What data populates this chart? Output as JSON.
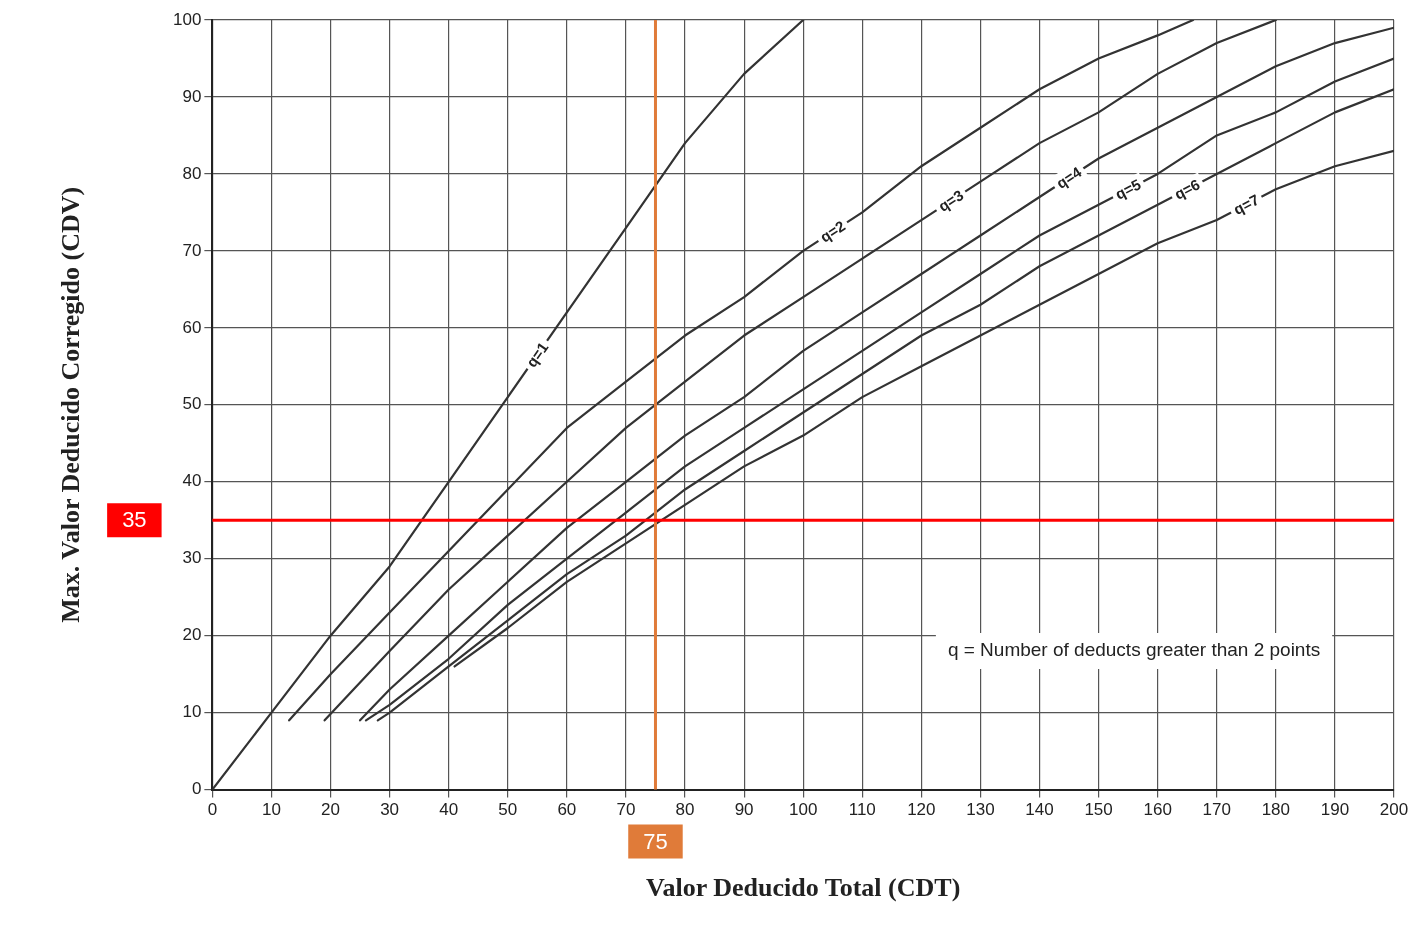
{
  "chart_data": {
    "type": "line",
    "xlabel": "Valor Deducido Total (CDT)",
    "ylabel": "Max. Valor Deducido Corregido (CDV)",
    "xlim": [
      0,
      200
    ],
    "ylim": [
      0,
      100
    ],
    "xticks": [
      0,
      10,
      20,
      30,
      40,
      50,
      60,
      70,
      80,
      90,
      100,
      110,
      120,
      130,
      140,
      150,
      160,
      170,
      180,
      190,
      200
    ],
    "yticks": [
      0,
      10,
      20,
      30,
      40,
      50,
      60,
      70,
      80,
      90,
      100
    ],
    "grid": true,
    "legend": false,
    "marker": "none",
    "line_style": "solid",
    "series": [
      {
        "name": "q=1",
        "color": "#333333",
        "x": [
          0,
          10,
          20,
          30,
          40,
          50,
          60,
          70,
          80,
          90,
          100
        ],
        "values": [
          0,
          10,
          20,
          29,
          40,
          51,
          62,
          73,
          84,
          93,
          100
        ]
      },
      {
        "name": "q=2",
        "color": "#333333",
        "x": [
          13,
          20,
          30,
          40,
          50,
          60,
          70,
          80,
          90,
          100,
          110,
          120,
          130,
          140,
          150,
          160,
          166
        ],
        "values": [
          9,
          15,
          23,
          31,
          39,
          47,
          53,
          59,
          64,
          70,
          75,
          81,
          86,
          91,
          95,
          98,
          100
        ]
      },
      {
        "name": "q=3",
        "color": "#333333",
        "x": [
          19,
          30,
          40,
          50,
          60,
          70,
          80,
          90,
          100,
          110,
          120,
          130,
          140,
          150,
          160,
          170,
          180
        ],
        "values": [
          9,
          18,
          26,
          33,
          40,
          47,
          53,
          59,
          64,
          69,
          74,
          79,
          84,
          88,
          93,
          97,
          100
        ]
      },
      {
        "name": "q=4",
        "color": "#333333",
        "x": [
          25,
          30,
          40,
          50,
          60,
          70,
          80,
          90,
          100,
          110,
          120,
          130,
          140,
          150,
          160,
          170,
          180,
          190,
          200
        ],
        "values": [
          9,
          13,
          20,
          27,
          34,
          40,
          46,
          51,
          57,
          62,
          67,
          72,
          77,
          82,
          86,
          90,
          94,
          97,
          99
        ]
      },
      {
        "name": "q=5",
        "color": "#333333",
        "x": [
          26,
          30,
          40,
          50,
          60,
          70,
          80,
          90,
          100,
          110,
          120,
          130,
          140,
          150,
          160,
          170,
          180,
          190,
          200
        ],
        "values": [
          9,
          11,
          17,
          24,
          30,
          36,
          42,
          47,
          52,
          57,
          62,
          67,
          72,
          76,
          80,
          85,
          88,
          92,
          95
        ]
      },
      {
        "name": "q=6",
        "color": "#333333",
        "x": [
          28,
          30,
          40,
          50,
          60,
          70,
          80,
          90,
          100,
          110,
          120,
          130,
          140,
          150,
          160,
          170,
          180,
          190,
          200
        ],
        "values": [
          9,
          10,
          16,
          22,
          28,
          33,
          39,
          44,
          49,
          54,
          59,
          63,
          68,
          72,
          76,
          80,
          84,
          88,
          91
        ]
      },
      {
        "name": "q=7",
        "color": "#333333",
        "x": [
          41,
          50,
          60,
          70,
          80,
          90,
          100,
          110,
          120,
          130,
          140,
          150,
          160,
          170,
          180,
          190,
          200
        ],
        "values": [
          16,
          21,
          27,
          32,
          37,
          42,
          46,
          51,
          55,
          59,
          63,
          67,
          71,
          74,
          78,
          81,
          83
        ]
      }
    ],
    "ref_lines": [
      {
        "axis": "x",
        "value": 75,
        "label": "75",
        "color": "#e07b39"
      },
      {
        "axis": "y",
        "value": 35,
        "label": "35",
        "color": "#ff0000"
      }
    ],
    "annotations": [
      "q = Number of deducts greater than 2 points"
    ]
  }
}
